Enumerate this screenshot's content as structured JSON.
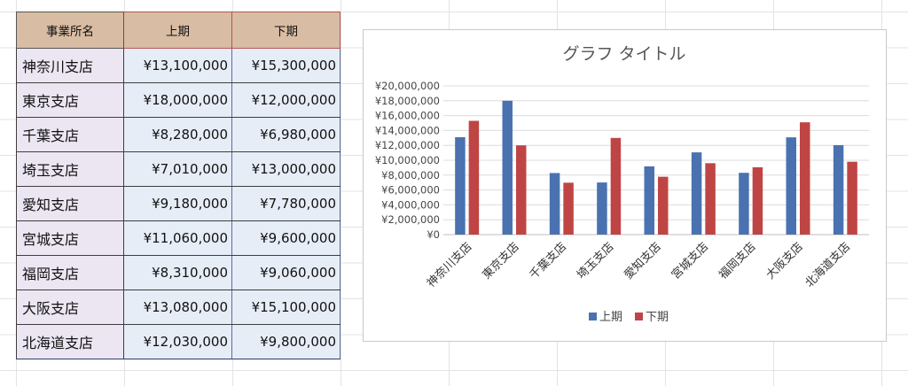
{
  "table": {
    "headers": [
      "事業所名",
      "上期",
      "下期"
    ],
    "rows": [
      [
        "神奈川支店",
        "¥13,100,000",
        "¥15,300,000"
      ],
      [
        "東京支店",
        "¥18,000,000",
        "¥12,000,000"
      ],
      [
        "千葉支店",
        "¥8,280,000",
        "¥6,980,000"
      ],
      [
        "埼玉支店",
        "¥7,010,000",
        "¥13,000,000"
      ],
      [
        "愛知支店",
        "¥9,180,000",
        "¥7,780,000"
      ],
      [
        "宮城支店",
        "¥11,060,000",
        "¥9,600,000"
      ],
      [
        "福岡支店",
        "¥8,310,000",
        "¥9,060,000"
      ],
      [
        "大阪支店",
        "¥13,080,000",
        "¥15,100,000"
      ],
      [
        "北海道支店",
        "¥12,030,000",
        "¥9,800,000"
      ]
    ]
  },
  "chart_data": {
    "type": "bar",
    "title": "グラフ タイトル",
    "categories": [
      "神奈川支店",
      "東京支店",
      "千葉支店",
      "埼玉支店",
      "愛知支店",
      "宮城支店",
      "福岡支店",
      "大阪支店",
      "北海道支店"
    ],
    "series": [
      {
        "name": "上期",
        "color": "#4a72b0",
        "values": [
          13100000,
          18000000,
          8280000,
          7010000,
          9180000,
          11060000,
          8310000,
          13080000,
          12030000
        ]
      },
      {
        "name": "下期",
        "color": "#bf4545",
        "values": [
          15300000,
          12000000,
          6980000,
          13000000,
          7780000,
          9600000,
          9060000,
          15100000,
          9800000
        ]
      }
    ],
    "ylim": [
      0,
      20000000
    ],
    "yticks": [
      0,
      2000000,
      4000000,
      6000000,
      8000000,
      10000000,
      12000000,
      14000000,
      16000000,
      18000000,
      20000000
    ],
    "ytick_labels": [
      "¥0",
      "¥2,000,000",
      "¥4,000,000",
      "¥6,000,000",
      "¥8,000,000",
      "¥10,000,000",
      "¥12,000,000",
      "¥14,000,000",
      "¥16,000,000",
      "¥18,000,000",
      "¥20,000,000"
    ],
    "grid": true,
    "legend": "bottom"
  }
}
